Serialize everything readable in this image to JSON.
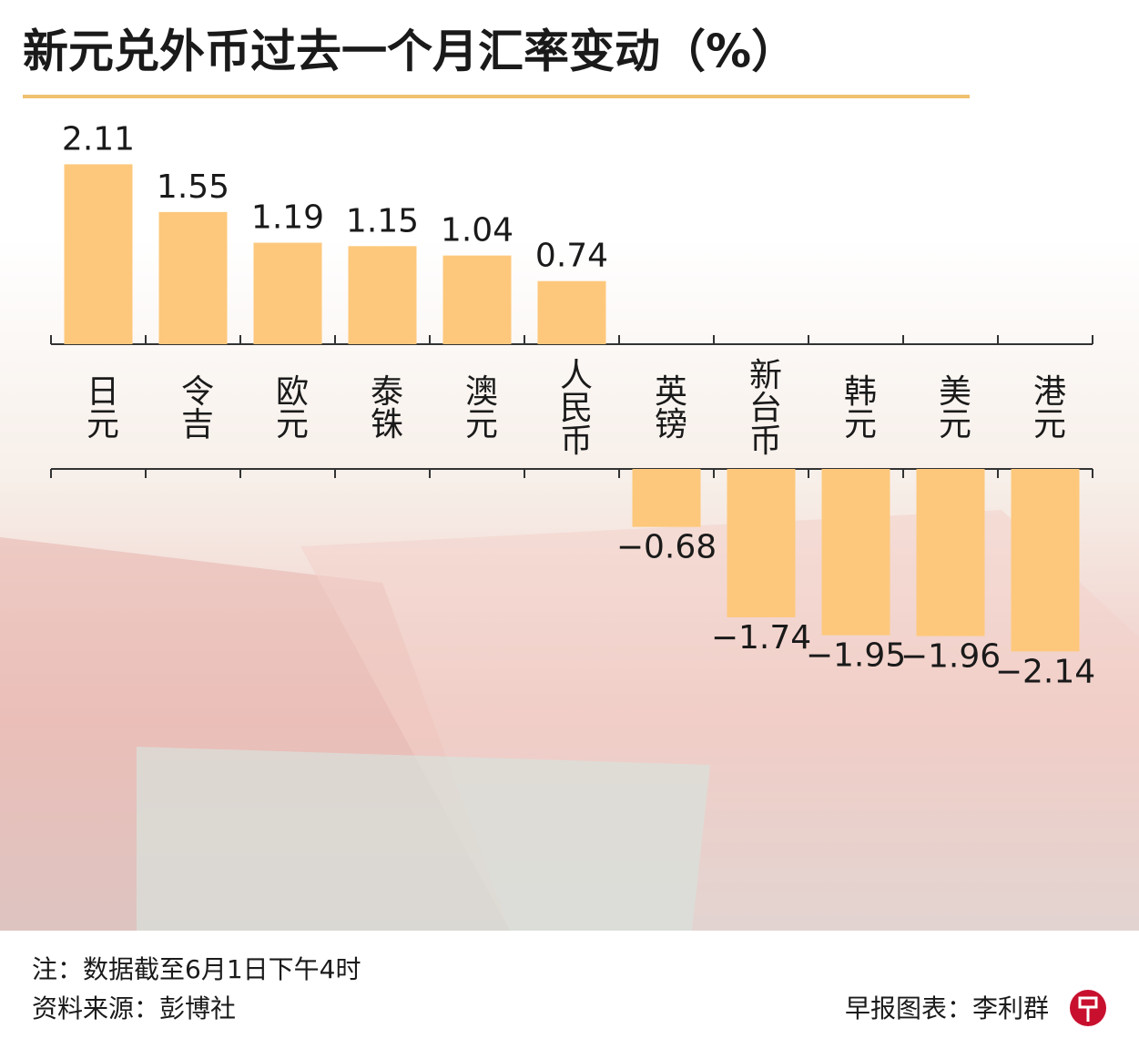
{
  "chart_data": {
    "type": "bar",
    "title": "新元兑外币过去一个月汇率变动（%）",
    "categories": [
      "日元",
      "令吉",
      "欧元",
      "泰铢",
      "澳元",
      "人民币",
      "英镑",
      "新台币",
      "韩元",
      "美元",
      "港元"
    ],
    "values": [
      2.11,
      1.55,
      1.19,
      1.15,
      1.04,
      0.74,
      -0.68,
      -1.74,
      -1.95,
      -1.96,
      -2.14
    ],
    "value_labels": [
      "2.11",
      "1.55",
      "1.19",
      "1.15",
      "1.04",
      "0.74",
      "−0.68",
      "−1.74",
      "−1.95",
      "−1.96",
      "−2.14"
    ],
    "color": "#fdc87c",
    "ylim": [
      -2.2,
      2.2
    ],
    "note": "注：数据截至6月1日下午4时",
    "source": "资料来源：彭博社",
    "credit": "早报图表：李利群"
  }
}
